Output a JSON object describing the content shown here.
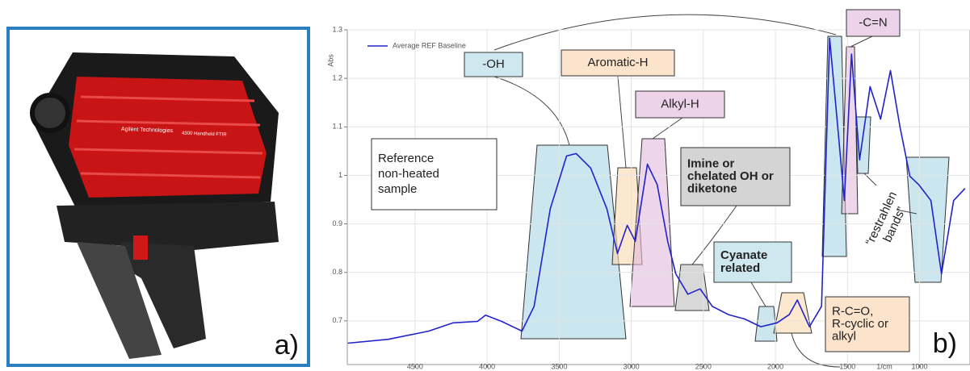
{
  "device_labels": [
    "Agilent Technologies",
    "4300 Handheld FTIR"
  ],
  "panel_labels": [
    "a)",
    "b)"
  ],
  "chart_data": {
    "type": "line",
    "y_label": "Abs",
    "x_label": "1/cm",
    "x": [
      4966,
      4685,
      4404,
      4236,
      4067,
      4011,
      3899,
      3758,
      3674,
      3562,
      3449,
      3382,
      3281,
      3169,
      3096,
      3028,
      2972,
      2888,
      2820,
      2747,
      2691,
      2607,
      2522,
      2438,
      2326,
      2213,
      2101,
      1989,
      1904,
      1848,
      1764,
      1680,
      1624,
      1567,
      1522,
      1472,
      1416,
      1343,
      1270,
      1202,
      1135,
      1067,
      1006,
      921,
      848,
      764,
      685
    ],
    "series": [
      {
        "name": "Average REF Baseline",
        "color": "#2222cc",
        "values": [
          0.654,
          0.662,
          0.679,
          0.696,
          0.699,
          0.712,
          0.699,
          0.679,
          0.73,
          0.931,
          1.04,
          1.045,
          1.015,
          0.931,
          0.839,
          0.897,
          0.864,
          1.023,
          0.981,
          0.864,
          0.797,
          0.755,
          0.766,
          0.73,
          0.713,
          0.704,
          0.688,
          0.696,
          0.713,
          0.743,
          0.688,
          0.73,
          1.283,
          1.099,
          0.948,
          1.25,
          1.032,
          1.183,
          1.116,
          1.216,
          1.099,
          0.998,
          0.981,
          0.948,
          0.797,
          0.948,
          0.973
        ]
      }
    ],
    "xlim": [
      4970,
      650
    ],
    "ylim": [
      0.61,
      1.3
    ],
    "xticks": [
      4500,
      4000,
      3500,
      3000,
      2500,
      2000,
      1500,
      1000
    ],
    "yticks": [
      0.7,
      0.8,
      0.9,
      1,
      1.1,
      1.2,
      1.3
    ],
    "grid": true,
    "annotations": [
      {
        "lines": [
          "-OH"
        ]
      },
      {
        "lines": [
          "Aromatic-H"
        ]
      },
      {
        "lines": [
          "Alkyl-H"
        ]
      },
      {
        "lines": [
          "-C=N"
        ]
      },
      {
        "lines": [
          "Reference",
          "non-heated",
          "sample"
        ]
      },
      {
        "lines": [
          "Imine or",
          "chelated OH or",
          "diketone"
        ]
      },
      {
        "lines": [
          "Cyanate",
          "related"
        ]
      },
      {
        "lines": [
          "R-C=O,",
          "R-cyclic or",
          "alkyl"
        ]
      },
      {
        "lines": [
          "“restrahlen",
          "bands”"
        ]
      }
    ]
  }
}
